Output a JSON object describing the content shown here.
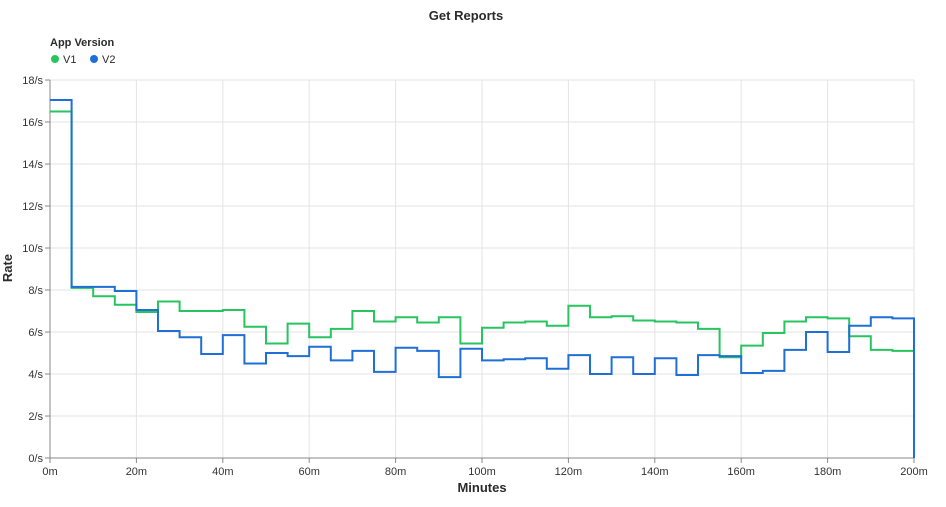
{
  "chart_data": {
    "type": "line",
    "title": "Get Reports",
    "xlabel": "Minutes",
    "ylabel": "Rate",
    "xlim": [
      0,
      200
    ],
    "ylim": [
      0,
      18
    ],
    "grid": true,
    "legend": {
      "title": "App Version",
      "placement": "top-left"
    },
    "x_ticks": [
      {
        "value": 0,
        "label": "0m"
      },
      {
        "value": 20,
        "label": "20m"
      },
      {
        "value": 40,
        "label": "40m"
      },
      {
        "value": 60,
        "label": "60m"
      },
      {
        "value": 80,
        "label": "80m"
      },
      {
        "value": 100,
        "label": "100m"
      },
      {
        "value": 120,
        "label": "120m"
      },
      {
        "value": 140,
        "label": "140m"
      },
      {
        "value": 160,
        "label": "160m"
      },
      {
        "value": 180,
        "label": "180m"
      },
      {
        "value": 200,
        "label": "200m"
      }
    ],
    "y_ticks": [
      {
        "value": 0,
        "label": "0/s"
      },
      {
        "value": 2,
        "label": "2/s"
      },
      {
        "value": 4,
        "label": "4/s"
      },
      {
        "value": 6,
        "label": "6/s"
      },
      {
        "value": 8,
        "label": "8/s"
      },
      {
        "value": 10,
        "label": "10/s"
      },
      {
        "value": 12,
        "label": "12/s"
      },
      {
        "value": 14,
        "label": "14/s"
      },
      {
        "value": 16,
        "label": "16/s"
      },
      {
        "value": 18,
        "label": "18/s"
      }
    ],
    "x": [
      0,
      5,
      10,
      15,
      20,
      25,
      30,
      35,
      40,
      45,
      50,
      55,
      60,
      65,
      70,
      75,
      80,
      85,
      90,
      95,
      100,
      105,
      110,
      115,
      120,
      125,
      130,
      135,
      140,
      145,
      150,
      155,
      160,
      165,
      170,
      175,
      180,
      185,
      190,
      195
    ],
    "x_end": 200,
    "series": [
      {
        "name": "V1",
        "color": "#27c45f",
        "values": [
          16.5,
          8.1,
          7.7,
          7.3,
          6.95,
          7.45,
          7.0,
          7.0,
          7.05,
          6.25,
          5.45,
          6.4,
          5.75,
          6.15,
          7.0,
          6.5,
          6.7,
          6.45,
          6.7,
          5.45,
          6.2,
          6.45,
          6.5,
          6.3,
          7.25,
          6.7,
          6.75,
          6.55,
          6.5,
          6.45,
          6.15,
          4.8,
          5.35,
          5.95,
          6.5,
          6.7,
          6.65,
          5.8,
          5.15,
          5.1
        ]
      },
      {
        "name": "V2",
        "color": "#1f6fd6",
        "values": [
          17.05,
          8.15,
          8.15,
          7.95,
          7.05,
          6.05,
          5.75,
          4.95,
          5.85,
          4.5,
          5.0,
          4.85,
          5.3,
          4.65,
          5.1,
          4.1,
          5.25,
          5.1,
          3.85,
          5.2,
          4.65,
          4.7,
          4.75,
          4.25,
          4.9,
          4.0,
          4.8,
          4.0,
          4.75,
          3.95,
          4.9,
          4.85,
          4.05,
          4.15,
          5.15,
          6.0,
          5.05,
          6.3,
          6.7,
          6.65
        ],
        "end_value": 0
      }
    ]
  }
}
